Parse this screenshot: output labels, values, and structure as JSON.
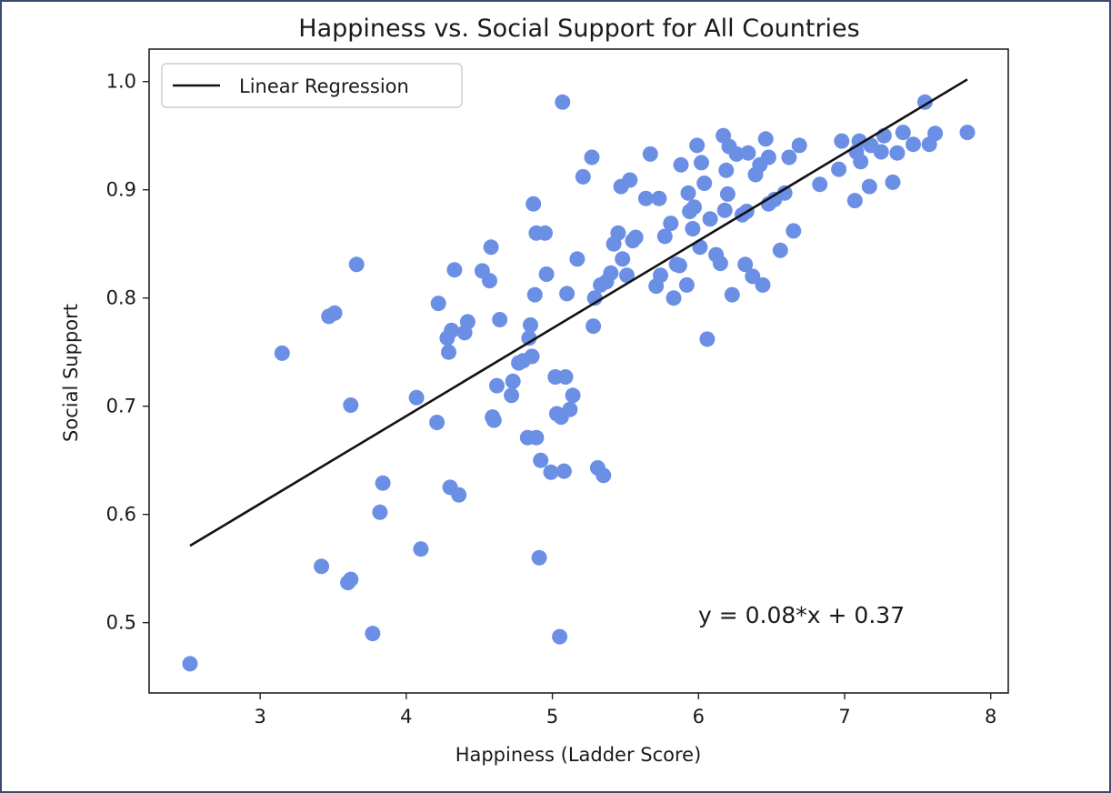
{
  "chart_data": {
    "type": "scatter",
    "title": "Happiness vs. Social Support for All Countries",
    "xlabel": "Happiness (Ladder Score)",
    "ylabel": "Social Support",
    "xlim": [
      2.24,
      8.12
    ],
    "ylim": [
      0.435,
      1.03
    ],
    "xticks": [
      3,
      4,
      5,
      6,
      7,
      8
    ],
    "yticks": [
      0.5,
      0.6,
      0.7,
      0.8,
      0.9,
      1.0
    ],
    "ytick_labels": [
      "0.5",
      "0.6",
      "0.7",
      "0.8",
      "0.9",
      "1.0"
    ],
    "grid": false,
    "legend_position": "top-left",
    "point_color": "#6b8fe5",
    "line_color": "#111111",
    "regression": {
      "label": "Linear Regression",
      "x_range": [
        2.52,
        7.84
      ],
      "y_range": [
        0.571,
        1.002
      ],
      "equation": "y = 0.08*x + 0.37"
    },
    "points": [
      [
        2.52,
        0.462
      ],
      [
        3.15,
        0.749
      ],
      [
        3.42,
        0.552
      ],
      [
        3.47,
        0.783
      ],
      [
        3.51,
        0.786
      ],
      [
        3.6,
        0.537
      ],
      [
        3.62,
        0.54
      ],
      [
        3.62,
        0.701
      ],
      [
        3.66,
        0.831
      ],
      [
        3.77,
        0.49
      ],
      [
        3.82,
        0.602
      ],
      [
        3.84,
        0.629
      ],
      [
        4.07,
        0.708
      ],
      [
        4.1,
        0.568
      ],
      [
        4.21,
        0.685
      ],
      [
        4.22,
        0.795
      ],
      [
        4.28,
        0.763
      ],
      [
        4.29,
        0.75
      ],
      [
        4.3,
        0.625
      ],
      [
        4.31,
        0.77
      ],
      [
        4.33,
        0.826
      ],
      [
        4.36,
        0.618
      ],
      [
        4.4,
        0.768
      ],
      [
        4.42,
        0.778
      ],
      [
        4.52,
        0.825
      ],
      [
        4.57,
        0.816
      ],
      [
        4.58,
        0.847
      ],
      [
        4.59,
        0.69
      ],
      [
        4.6,
        0.687
      ],
      [
        4.62,
        0.719
      ],
      [
        4.64,
        0.78
      ],
      [
        4.72,
        0.71
      ],
      [
        4.73,
        0.723
      ],
      [
        4.77,
        0.74
      ],
      [
        4.8,
        0.742
      ],
      [
        4.83,
        0.671
      ],
      [
        4.84,
        0.763
      ],
      [
        4.85,
        0.775
      ],
      [
        4.86,
        0.746
      ],
      [
        4.87,
        0.887
      ],
      [
        4.88,
        0.803
      ],
      [
        4.89,
        0.671
      ],
      [
        4.89,
        0.86
      ],
      [
        4.91,
        0.56
      ],
      [
        4.92,
        0.65
      ],
      [
        4.95,
        0.86
      ],
      [
        4.96,
        0.822
      ],
      [
        4.99,
        0.639
      ],
      [
        5.02,
        0.727
      ],
      [
        5.03,
        0.693
      ],
      [
        5.05,
        0.487
      ],
      [
        5.06,
        0.69
      ],
      [
        5.07,
        0.981
      ],
      [
        5.08,
        0.64
      ],
      [
        5.09,
        0.727
      ],
      [
        5.1,
        0.804
      ],
      [
        5.12,
        0.697
      ],
      [
        5.14,
        0.71
      ],
      [
        5.17,
        0.836
      ],
      [
        5.21,
        0.912
      ],
      [
        5.27,
        0.93
      ],
      [
        5.28,
        0.774
      ],
      [
        5.29,
        0.8
      ],
      [
        5.31,
        0.643
      ],
      [
        5.33,
        0.812
      ],
      [
        5.35,
        0.636
      ],
      [
        5.37,
        0.815
      ],
      [
        5.4,
        0.823
      ],
      [
        5.42,
        0.85
      ],
      [
        5.45,
        0.86
      ],
      [
        5.47,
        0.903
      ],
      [
        5.48,
        0.836
      ],
      [
        5.51,
        0.821
      ],
      [
        5.53,
        0.909
      ],
      [
        5.55,
        0.853
      ],
      [
        5.57,
        0.856
      ],
      [
        5.64,
        0.892
      ],
      [
        5.67,
        0.933
      ],
      [
        5.71,
        0.811
      ],
      [
        5.73,
        0.892
      ],
      [
        5.74,
        0.821
      ],
      [
        5.77,
        0.857
      ],
      [
        5.81,
        0.869
      ],
      [
        5.83,
        0.8
      ],
      [
        5.85,
        0.831
      ],
      [
        5.87,
        0.83
      ],
      [
        5.88,
        0.923
      ],
      [
        5.92,
        0.812
      ],
      [
        5.93,
        0.897
      ],
      [
        5.94,
        0.88
      ],
      [
        5.96,
        0.864
      ],
      [
        5.97,
        0.884
      ],
      [
        5.99,
        0.941
      ],
      [
        6.01,
        0.847
      ],
      [
        6.02,
        0.925
      ],
      [
        6.04,
        0.906
      ],
      [
        6.06,
        0.762
      ],
      [
        6.08,
        0.873
      ],
      [
        6.12,
        0.84
      ],
      [
        6.15,
        0.832
      ],
      [
        6.17,
        0.95
      ],
      [
        6.18,
        0.881
      ],
      [
        6.19,
        0.918
      ],
      [
        6.2,
        0.896
      ],
      [
        6.21,
        0.94
      ],
      [
        6.23,
        0.803
      ],
      [
        6.26,
        0.933
      ],
      [
        6.3,
        0.877
      ],
      [
        6.32,
        0.831
      ],
      [
        6.33,
        0.88
      ],
      [
        6.34,
        0.934
      ],
      [
        6.37,
        0.82
      ],
      [
        6.39,
        0.914
      ],
      [
        6.42,
        0.923
      ],
      [
        6.44,
        0.812
      ],
      [
        6.46,
        0.947
      ],
      [
        6.48,
        0.887
      ],
      [
        6.48,
        0.93
      ],
      [
        6.52,
        0.891
      ],
      [
        6.56,
        0.844
      ],
      [
        6.59,
        0.897
      ],
      [
        6.62,
        0.93
      ],
      [
        6.65,
        0.862
      ],
      [
        6.69,
        0.941
      ],
      [
        6.83,
        0.905
      ],
      [
        6.96,
        0.919
      ],
      [
        6.98,
        0.945
      ],
      [
        7.07,
        0.89
      ],
      [
        7.08,
        0.935
      ],
      [
        7.1,
        0.945
      ],
      [
        7.11,
        0.926
      ],
      [
        7.17,
        0.903
      ],
      [
        7.18,
        0.941
      ],
      [
        7.25,
        0.935
      ],
      [
        7.27,
        0.95
      ],
      [
        7.33,
        0.907
      ],
      [
        7.36,
        0.934
      ],
      [
        7.4,
        0.953
      ],
      [
        7.47,
        0.942
      ],
      [
        7.55,
        0.981
      ],
      [
        7.58,
        0.942
      ],
      [
        7.62,
        0.952
      ],
      [
        7.84,
        0.953
      ]
    ]
  }
}
